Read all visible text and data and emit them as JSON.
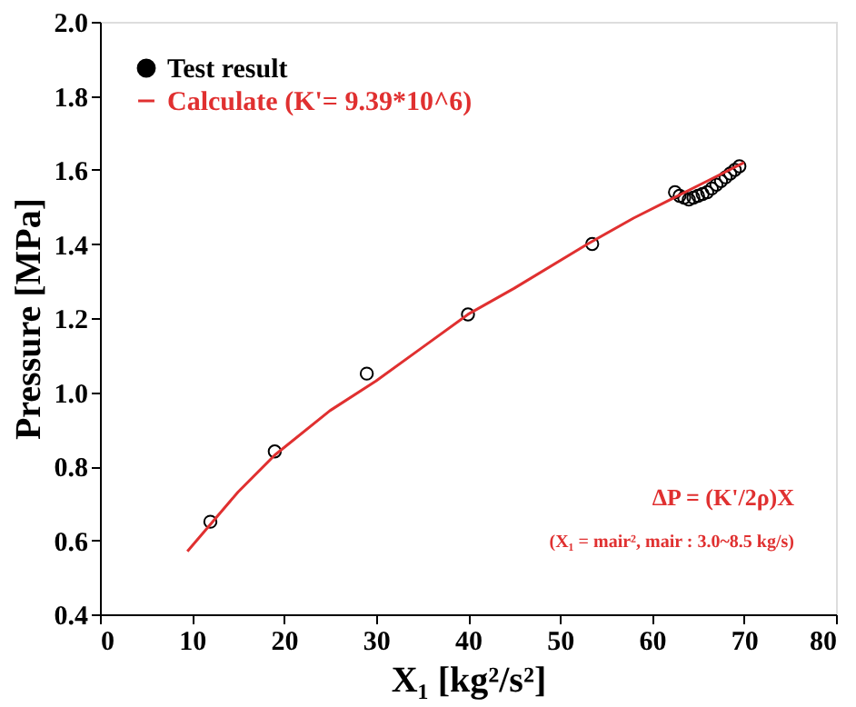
{
  "chart_data": {
    "type": "scatter",
    "xlabel": "X₁ [kg²/s²]",
    "ylabel": "Pressure [MPa]",
    "series": [
      {
        "name": "Test result",
        "color": "#000000",
        "marker": "circle",
        "x": [
          12,
          19,
          29,
          40,
          53.5,
          62.5,
          63,
          63.5,
          64,
          64.5,
          65,
          65.5,
          66,
          66.5,
          67,
          67.5,
          68,
          68.5,
          69,
          69.5
        ],
        "values": [
          0.65,
          0.84,
          1.05,
          1.21,
          1.4,
          1.54,
          1.53,
          1.525,
          1.52,
          1.525,
          1.53,
          1.535,
          1.54,
          1.55,
          1.56,
          1.57,
          1.58,
          1.59,
          1.6,
          1.61
        ]
      },
      {
        "name": "Calculate (K'= 9.39*10^6)",
        "type": "line",
        "color": "#e03030",
        "marker": "none",
        "line_style": "solid",
        "x": [
          9.5,
          15,
          19,
          25,
          30,
          35,
          40,
          45,
          53,
          58,
          62,
          66,
          70
        ],
        "values": [
          0.57,
          0.73,
          0.83,
          0.95,
          1.03,
          1.12,
          1.21,
          1.28,
          1.4,
          1.47,
          1.52,
          1.57,
          1.62
        ]
      }
    ],
    "xlim": [
      0,
      80
    ],
    "xticks": [
      0,
      10,
      20,
      30,
      40,
      50,
      60,
      70,
      80
    ],
    "ylim": [
      0.4,
      2.0
    ],
    "yticks": [
      0.4,
      0.6,
      0.8,
      {
        "value": 1,
        "label": "1.0"
      },
      1.2,
      1.4,
      1.6,
      1.8,
      {
        "value": 2,
        "label": "2.0"
      }
    ],
    "grid": false,
    "legend": "top left",
    "annotations": [
      "ΔP = (K'/2ρ)X",
      "(X₁ = mair², mair : 3.0~8.5 kg/s)"
    ]
  }
}
